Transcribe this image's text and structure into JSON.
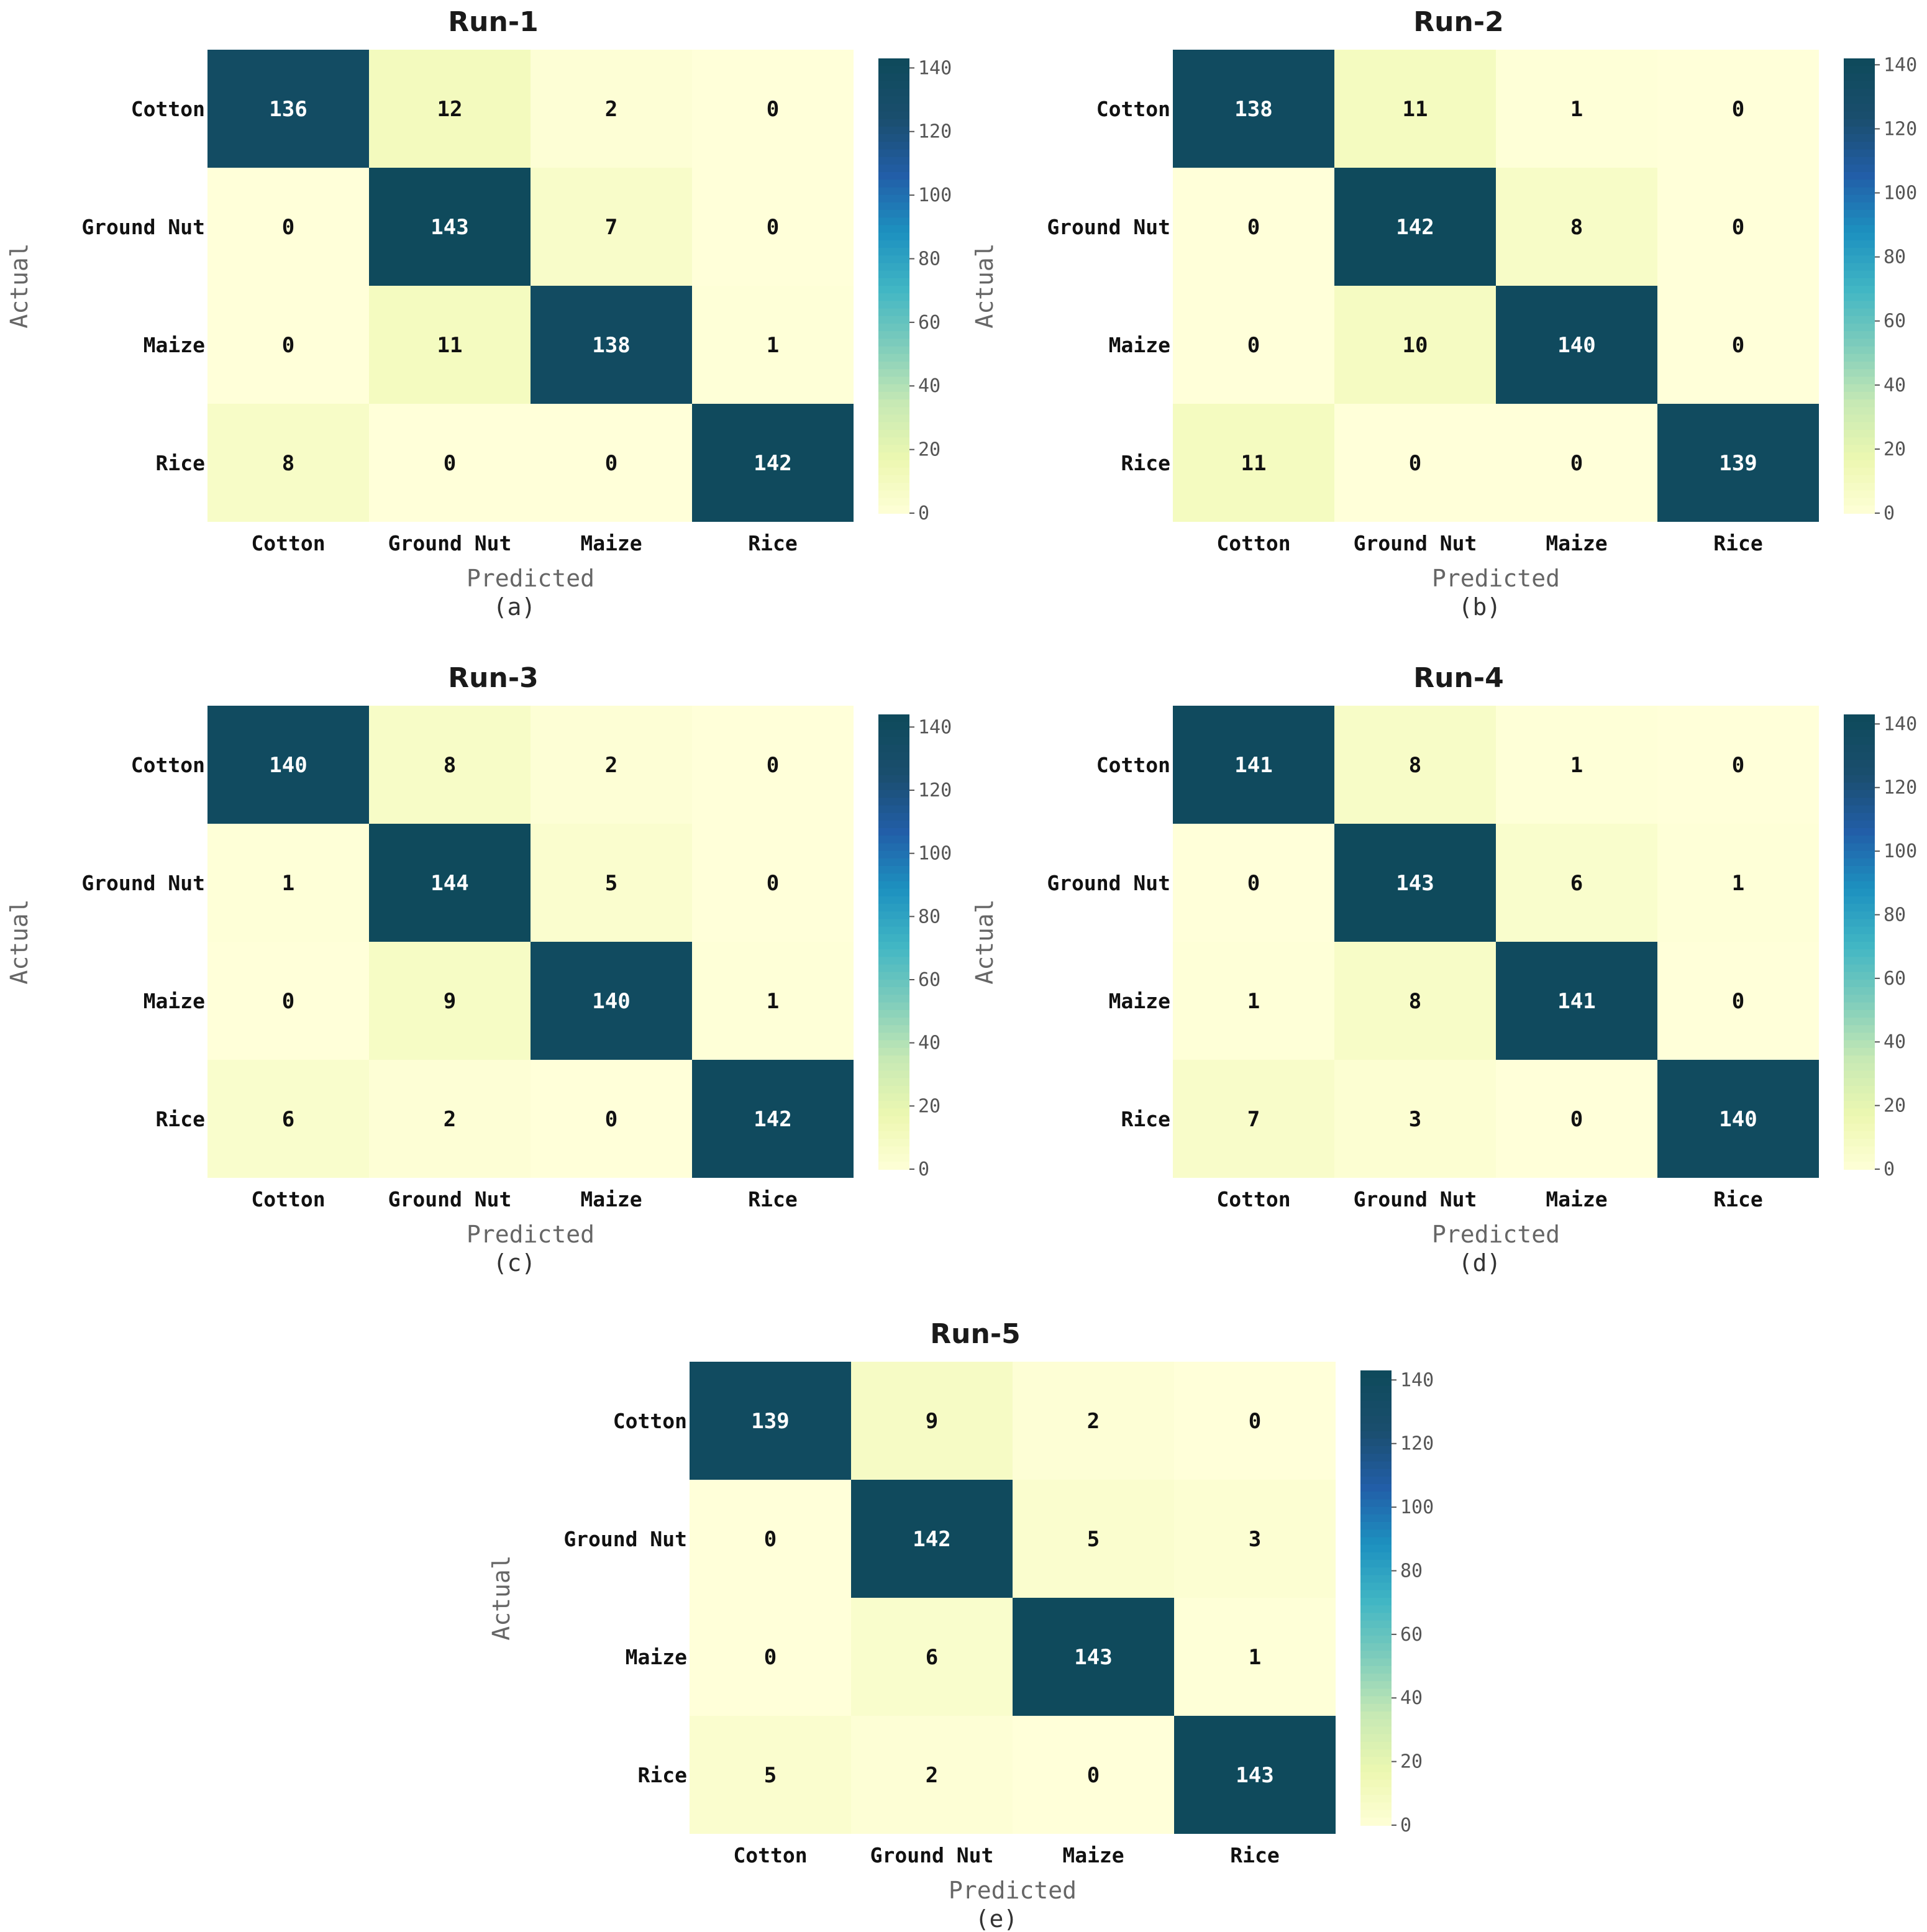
{
  "chart_data": [
    {
      "type": "heatmap",
      "title": "Run-1",
      "subfigure_label": "(a)",
      "xlabel": "Predicted",
      "ylabel": "Actual",
      "x_categories": [
        "Cotton",
        "Ground Nut",
        "Maize",
        "Rice"
      ],
      "y_categories": [
        "Cotton",
        "Ground Nut",
        "Maize",
        "Rice"
      ],
      "values": [
        [
          136,
          12,
          2,
          0
        ],
        [
          0,
          143,
          7,
          0
        ],
        [
          0,
          11,
          138,
          1
        ],
        [
          8,
          0,
          0,
          142
        ]
      ],
      "colorbar": {
        "range": [
          0,
          143
        ],
        "ticks": [
          0,
          20,
          40,
          60,
          80,
          100,
          120,
          140
        ]
      }
    },
    {
      "type": "heatmap",
      "title": "Run-2",
      "subfigure_label": "(b)",
      "xlabel": "Predicted",
      "ylabel": "Actual",
      "x_categories": [
        "Cotton",
        "Ground Nut",
        "Maize",
        "Rice"
      ],
      "y_categories": [
        "Cotton",
        "Ground Nut",
        "Maize",
        "Rice"
      ],
      "values": [
        [
          138,
          11,
          1,
          0
        ],
        [
          0,
          142,
          8,
          0
        ],
        [
          0,
          10,
          140,
          0
        ],
        [
          11,
          0,
          0,
          139
        ]
      ],
      "colorbar": {
        "range": [
          0,
          142
        ],
        "ticks": [
          0,
          20,
          40,
          60,
          80,
          100,
          120,
          140
        ]
      }
    },
    {
      "type": "heatmap",
      "title": "Run-3",
      "subfigure_label": "(c)",
      "xlabel": "Predicted",
      "ylabel": "Actual",
      "x_categories": [
        "Cotton",
        "Ground Nut",
        "Maize",
        "Rice"
      ],
      "y_categories": [
        "Cotton",
        "Ground Nut",
        "Maize",
        "Rice"
      ],
      "values": [
        [
          140,
          8,
          2,
          0
        ],
        [
          1,
          144,
          5,
          0
        ],
        [
          0,
          9,
          140,
          1
        ],
        [
          6,
          2,
          0,
          142
        ]
      ],
      "colorbar": {
        "range": [
          0,
          144
        ],
        "ticks": [
          0,
          20,
          40,
          60,
          80,
          100,
          120,
          140
        ]
      }
    },
    {
      "type": "heatmap",
      "title": "Run-4",
      "subfigure_label": "(d)",
      "xlabel": "Predicted",
      "ylabel": "Actual",
      "x_categories": [
        "Cotton",
        "Ground Nut",
        "Maize",
        "Rice"
      ],
      "y_categories": [
        "Cotton",
        "Ground Nut",
        "Maize",
        "Rice"
      ],
      "values": [
        [
          141,
          8,
          1,
          0
        ],
        [
          0,
          143,
          6,
          1
        ],
        [
          1,
          8,
          141,
          0
        ],
        [
          7,
          3,
          0,
          140
        ]
      ],
      "colorbar": {
        "range": [
          0,
          143
        ],
        "ticks": [
          0,
          20,
          40,
          60,
          80,
          100,
          120,
          140
        ]
      }
    },
    {
      "type": "heatmap",
      "title": "Run-5",
      "subfigure_label": "(e)",
      "xlabel": "Predicted",
      "ylabel": "Actual",
      "x_categories": [
        "Cotton",
        "Ground Nut",
        "Maize",
        "Rice"
      ],
      "y_categories": [
        "Cotton",
        "Ground Nut",
        "Maize",
        "Rice"
      ],
      "values": [
        [
          139,
          9,
          2,
          0
        ],
        [
          0,
          142,
          5,
          3
        ],
        [
          0,
          6,
          143,
          1
        ],
        [
          5,
          2,
          0,
          143
        ]
      ],
      "colorbar": {
        "range": [
          0,
          143
        ],
        "ticks": [
          0,
          20,
          40,
          60,
          80,
          100,
          120,
          140
        ]
      }
    }
  ],
  "colors": {
    "scale": [
      "#ffffd9",
      "#edf8b1",
      "#c7e9b4",
      "#7fcdbb",
      "#41b6c4",
      "#1d91c0",
      "#225ea8",
      "#1a4e6e",
      "#0f4a5c"
    ],
    "text_dark": "#111111",
    "text_light": "#ffffff"
  }
}
